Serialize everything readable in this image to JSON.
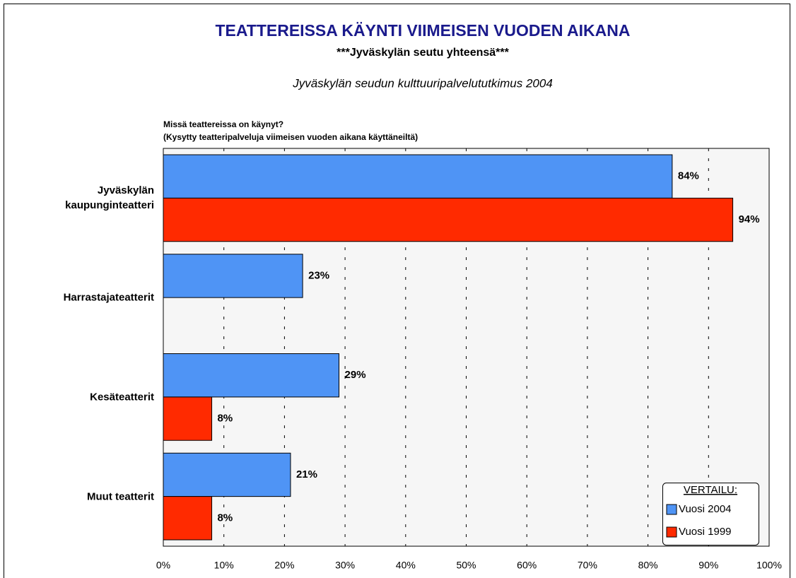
{
  "chart_data": {
    "type": "hbar",
    "title": "TEATTEREISSA KÄYNTI VIIMEISEN VUODEN AIKANA",
    "subtitle": "***Jyväskylän seutu yhteensä***",
    "source": "Jyväskylän seudun kulttuuripalvelututkimus 2004",
    "question": [
      "Missä teattereissa on käynyt?",
      "(Kysytty teatteripalveluja viimeisen vuoden aikana käyttäneiltä)"
    ],
    "categories": [
      "Jyväskylän kaupunginteatteri",
      "Harrastajateatterit",
      "Kesäteatterit",
      "Muut teatterit"
    ],
    "series": [
      {
        "name": "Vuosi 2004",
        "color": "#4f94f5",
        "values": [
          84,
          23,
          29,
          21
        ],
        "value_labels": [
          "84%",
          "23%",
          "29%",
          "21%"
        ]
      },
      {
        "name": "Vuosi 1999",
        "color": "#ff2a00",
        "values": [
          94,
          null,
          8,
          8
        ],
        "value_labels": [
          "94%",
          null,
          "8%",
          "8%"
        ]
      }
    ],
    "legend_title": "VERTAILU:",
    "legend": "bottom-right",
    "xlim": [
      0,
      100
    ],
    "xticks": [
      {
        "value": 0,
        "label": "0%"
      },
      {
        "value": 10,
        "label": "10%"
      },
      {
        "value": 20,
        "label": "20%"
      },
      {
        "value": 30,
        "label": "30%"
      },
      {
        "value": 40,
        "label": "40%"
      },
      {
        "value": 50,
        "label": "50%"
      },
      {
        "value": 60,
        "label": "60%"
      },
      {
        "value": 70,
        "label": "70%"
      },
      {
        "value": 80,
        "label": "80%"
      },
      {
        "value": 90,
        "label": "90%"
      },
      {
        "value": 100,
        "label": "100%"
      }
    ],
    "grid": true
  }
}
